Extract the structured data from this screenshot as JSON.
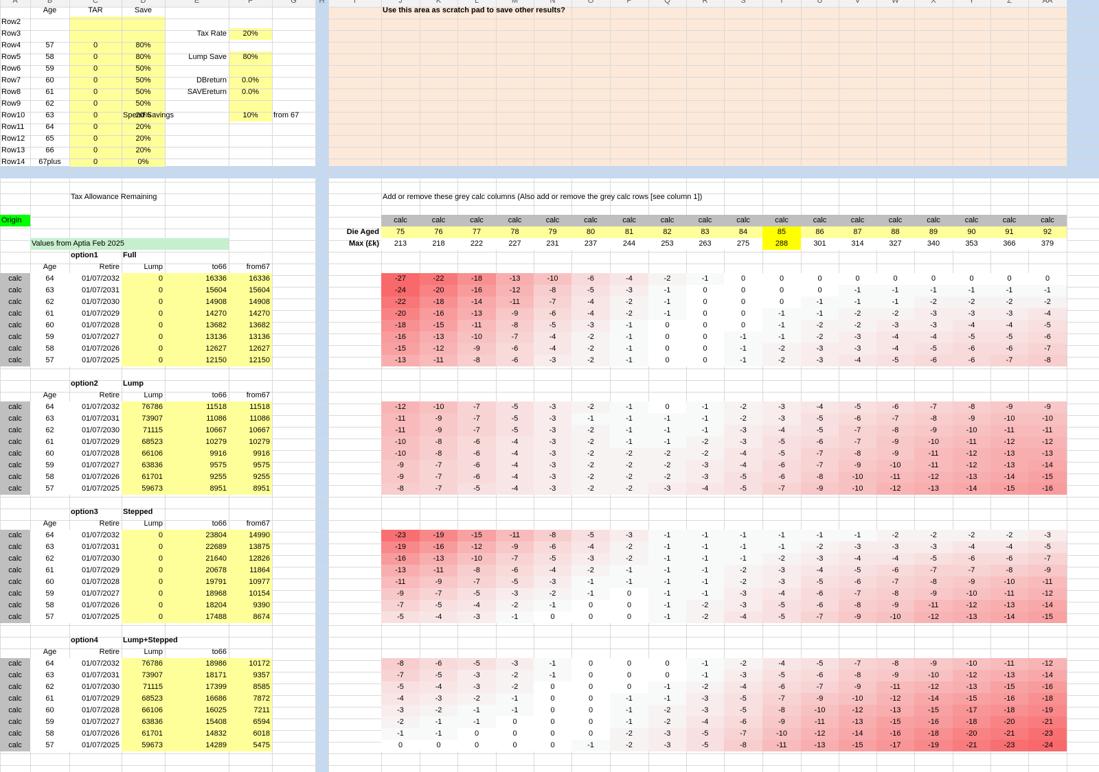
{
  "colors": {
    "yellow": "#ffff99",
    "peach": "#fde9d9",
    "blue_band": "#c5d9f1",
    "grey": "#bfbfbf",
    "green": "#00ff00",
    "light_green": "#c6efce",
    "highlight": "#ffff00",
    "cell_red": "#f8696b"
  },
  "column_letters": [
    "A",
    "B",
    "C",
    "D",
    "E",
    "F",
    "G",
    "H",
    "I",
    "J",
    "K",
    "L",
    "M",
    "N",
    "O",
    "P",
    "Q",
    "R",
    "S",
    "T",
    "U",
    "V",
    "W",
    "X",
    "Y",
    "Z",
    "AA"
  ],
  "params": {
    "headers": [
      "Age",
      "TAR",
      "Save"
    ],
    "rows": [
      {
        "label": "Row2",
        "age": "",
        "tar": "",
        "save": ""
      },
      {
        "label": "Row3",
        "age": "",
        "tar": "",
        "save": ""
      },
      {
        "label": "Row4",
        "age": "57",
        "tar": "0",
        "save": "80%"
      },
      {
        "label": "Row5",
        "age": "58",
        "tar": "0",
        "save": "80%"
      },
      {
        "label": "Row6",
        "age": "59",
        "tar": "0",
        "save": "50%"
      },
      {
        "label": "Row7",
        "age": "60",
        "tar": "0",
        "save": "50%"
      },
      {
        "label": "Row8",
        "age": "61",
        "tar": "0",
        "save": "50%"
      },
      {
        "label": "Row9",
        "age": "62",
        "tar": "0",
        "save": "50%"
      },
      {
        "label": "Row10",
        "age": "63",
        "tar": "0",
        "save": "20%"
      },
      {
        "label": "Row11",
        "age": "64",
        "tar": "0",
        "save": "20%"
      },
      {
        "label": "Row12",
        "age": "65",
        "tar": "0",
        "save": "20%"
      },
      {
        "label": "Row13",
        "age": "66",
        "tar": "0",
        "save": "20%"
      },
      {
        "label": "Row14",
        "age": "67plus",
        "tar": "0",
        "save": "0%"
      }
    ],
    "settings": [
      {
        "label": "Tax Rate",
        "value": "20%",
        "extra": ""
      },
      {
        "label": "Lump Save",
        "value": "80%",
        "extra": ""
      },
      {
        "label": "DBreturn",
        "value": "0.0%",
        "extra": ""
      },
      {
        "label": "SAVEreturn",
        "value": "0.0%",
        "extra": ""
      },
      {
        "label": "Spend Savings",
        "value": "10%",
        "extra": "from 67"
      }
    ]
  },
  "scratch_note": "Use this area as scratch pad to save other results?",
  "tar_title": "Tax Allowance Remaining",
  "calc_note": "Add or remove these grey calc columns   (Also add or remove the grey calc rows [see column 1])",
  "origin_label": "Origin",
  "values_note": "Values from Aptia Feb 2025",
  "calc_label": "calc",
  "die_aged_label": "Die Aged",
  "max_label": "Max (£k)",
  "die_ages": [
    "75",
    "76",
    "77",
    "78",
    "79",
    "80",
    "81",
    "82",
    "83",
    "84",
    "85",
    "86",
    "87",
    "88",
    "89",
    "90",
    "91",
    "92"
  ],
  "max_values": [
    "213",
    "218",
    "222",
    "227",
    "231",
    "237",
    "244",
    "253",
    "263",
    "275",
    "288",
    "301",
    "314",
    "327",
    "340",
    "353",
    "366",
    "379"
  ],
  "highlight_col": 10,
  "options": [
    {
      "name": "option1",
      "title": "Full",
      "headers": [
        "Age",
        "Retire",
        "Lump",
        "to66",
        "from67"
      ],
      "rows": [
        [
          "64",
          "01/07/2032",
          "0",
          "16336",
          "16336"
        ],
        [
          "63",
          "01/07/2031",
          "0",
          "15604",
          "15604"
        ],
        [
          "62",
          "01/07/2030",
          "0",
          "14908",
          "14908"
        ],
        [
          "61",
          "01/07/2029",
          "0",
          "14270",
          "14270"
        ],
        [
          "60",
          "01/07/2028",
          "0",
          "13682",
          "13682"
        ],
        [
          "59",
          "01/07/2027",
          "0",
          "13136",
          "13136"
        ],
        [
          "58",
          "01/07/2026",
          "0",
          "12627",
          "12627"
        ],
        [
          "57",
          "01/07/2025",
          "0",
          "12150",
          "12150"
        ]
      ],
      "grid": [
        [
          "-27",
          "-22",
          "-18",
          "-13",
          "-10",
          "-6",
          "-4",
          "-2",
          "-1",
          "0",
          "0",
          "0",
          "0",
          "0",
          "0",
          "0",
          "0",
          "0"
        ],
        [
          "-24",
          "-20",
          "-16",
          "-12",
          "-8",
          "-5",
          "-3",
          "-1",
          "0",
          "0",
          "0",
          "0",
          "-1",
          "-1",
          "-1",
          "-1",
          "-1",
          "-1"
        ],
        [
          "-22",
          "-18",
          "-14",
          "-11",
          "-7",
          "-4",
          "-2",
          "-1",
          "0",
          "0",
          "0",
          "-1",
          "-1",
          "-1",
          "-2",
          "-2",
          "-2",
          "-2"
        ],
        [
          "-20",
          "-16",
          "-13",
          "-9",
          "-6",
          "-4",
          "-2",
          "-1",
          "0",
          "0",
          "-1",
          "-1",
          "-2",
          "-2",
          "-3",
          "-3",
          "-3",
          "-4"
        ],
        [
          "-18",
          "-15",
          "-11",
          "-8",
          "-5",
          "-3",
          "-1",
          "0",
          "0",
          "0",
          "-1",
          "-2",
          "-2",
          "-3",
          "-3",
          "-4",
          "-4",
          "-5"
        ],
        [
          "-16",
          "-13",
          "-10",
          "-7",
          "-4",
          "-2",
          "-1",
          "0",
          "0",
          "-1",
          "-1",
          "-2",
          "-3",
          "-4",
          "-4",
          "-5",
          "-5",
          "-6"
        ],
        [
          "-15",
          "-12",
          "-9",
          "-6",
          "-4",
          "-2",
          "-1",
          "0",
          "0",
          "-1",
          "-2",
          "-3",
          "-3",
          "-4",
          "-5",
          "-6",
          "-6",
          "-7"
        ],
        [
          "-13",
          "-11",
          "-8",
          "-6",
          "-3",
          "-2",
          "-1",
          "0",
          "0",
          "-1",
          "-2",
          "-3",
          "-4",
          "-5",
          "-6",
          "-6",
          "-7",
          "-8"
        ]
      ]
    },
    {
      "name": "option2",
      "title": "Lump",
      "headers": [
        "Age",
        "Retire",
        "Lump",
        "to66",
        "from67"
      ],
      "rows": [
        [
          "64",
          "01/07/2032",
          "76786",
          "11518",
          "11518"
        ],
        [
          "63",
          "01/07/2031",
          "73907",
          "11086",
          "11086"
        ],
        [
          "62",
          "01/07/2030",
          "71115",
          "10667",
          "10667"
        ],
        [
          "61",
          "01/07/2029",
          "68523",
          "10279",
          "10279"
        ],
        [
          "60",
          "01/07/2028",
          "66106",
          "9916",
          "9916"
        ],
        [
          "59",
          "01/07/2027",
          "63836",
          "9575",
          "9575"
        ],
        [
          "58",
          "01/07/2026",
          "61701",
          "9255",
          "9255"
        ],
        [
          "57",
          "01/07/2025",
          "59673",
          "8951",
          "8951"
        ]
      ],
      "grid": [
        [
          "-12",
          "-10",
          "-7",
          "-5",
          "-3",
          "-2",
          "-1",
          "0",
          "-1",
          "-2",
          "-3",
          "-4",
          "-5",
          "-6",
          "-7",
          "-8",
          "-9",
          "-9"
        ],
        [
          "-11",
          "-9",
          "-7",
          "-5",
          "-3",
          "-1",
          "-1",
          "-1",
          "-1",
          "-2",
          "-3",
          "-5",
          "-6",
          "-7",
          "-8",
          "-9",
          "-10",
          "-10"
        ],
        [
          "-11",
          "-9",
          "-7",
          "-5",
          "-3",
          "-2",
          "-1",
          "-1",
          "-1",
          "-3",
          "-4",
          "-5",
          "-7",
          "-8",
          "-9",
          "-10",
          "-11",
          "-11"
        ],
        [
          "-10",
          "-8",
          "-6",
          "-4",
          "-3",
          "-2",
          "-1",
          "-1",
          "-2",
          "-3",
          "-5",
          "-6",
          "-7",
          "-9",
          "-10",
          "-11",
          "-12",
          "-12"
        ],
        [
          "-10",
          "-8",
          "-6",
          "-4",
          "-3",
          "-2",
          "-2",
          "-2",
          "-2",
          "-4",
          "-5",
          "-7",
          "-8",
          "-9",
          "-11",
          "-12",
          "-13",
          "-13"
        ],
        [
          "-9",
          "-7",
          "-6",
          "-4",
          "-3",
          "-2",
          "-2",
          "-2",
          "-3",
          "-4",
          "-6",
          "-7",
          "-9",
          "-10",
          "-11",
          "-12",
          "-13",
          "-14"
        ],
        [
          "-9",
          "-7",
          "-6",
          "-4",
          "-3",
          "-2",
          "-2",
          "-2",
          "-3",
          "-5",
          "-6",
          "-8",
          "-10",
          "-11",
          "-12",
          "-13",
          "-14",
          "-15"
        ],
        [
          "-8",
          "-7",
          "-5",
          "-4",
          "-3",
          "-2",
          "-2",
          "-3",
          "-4",
          "-5",
          "-7",
          "-9",
          "-10",
          "-12",
          "-13",
          "-14",
          "-15",
          "-16"
        ]
      ]
    },
    {
      "name": "option3",
      "title": "Stepped",
      "headers": [
        "Age",
        "Retire",
        "Lump",
        "to66",
        "from67"
      ],
      "rows": [
        [
          "64",
          "01/07/2032",
          "0",
          "23804",
          "14990"
        ],
        [
          "63",
          "01/07/2031",
          "0",
          "22689",
          "13875"
        ],
        [
          "62",
          "01/07/2030",
          "0",
          "21640",
          "12826"
        ],
        [
          "61",
          "01/07/2029",
          "0",
          "20678",
          "11864"
        ],
        [
          "60",
          "01/07/2028",
          "0",
          "19791",
          "10977"
        ],
        [
          "59",
          "01/07/2027",
          "0",
          "18968",
          "10154"
        ],
        [
          "58",
          "01/07/2026",
          "0",
          "18204",
          "9390"
        ],
        [
          "57",
          "01/07/2025",
          "0",
          "17488",
          "8674"
        ]
      ],
      "grid": [
        [
          "-23",
          "-19",
          "-15",
          "-11",
          "-8",
          "-5",
          "-3",
          "-1",
          "-1",
          "-1",
          "-1",
          "-1",
          "-1",
          "-2",
          "-2",
          "-2",
          "-2",
          "-3"
        ],
        [
          "-19",
          "-16",
          "-12",
          "-9",
          "-6",
          "-4",
          "-2",
          "-1",
          "-1",
          "-1",
          "-1",
          "-2",
          "-3",
          "-3",
          "-3",
          "-4",
          "-4",
          "-5"
        ],
        [
          "-16",
          "-13",
          "-10",
          "-7",
          "-5",
          "-3",
          "-2",
          "-1",
          "-1",
          "-1",
          "-2",
          "-3",
          "-4",
          "-4",
          "-5",
          "-6",
          "-6",
          "-7"
        ],
        [
          "-13",
          "-11",
          "-8",
          "-6",
          "-4",
          "-2",
          "-1",
          "-1",
          "-1",
          "-2",
          "-3",
          "-4",
          "-5",
          "-6",
          "-7",
          "-7",
          "-8",
          "-9"
        ],
        [
          "-11",
          "-9",
          "-7",
          "-5",
          "-3",
          "-1",
          "-1",
          "-1",
          "-1",
          "-2",
          "-3",
          "-5",
          "-6",
          "-7",
          "-8",
          "-9",
          "-10",
          "-11"
        ],
        [
          "-9",
          "-7",
          "-5",
          "-3",
          "-2",
          "-1",
          "0",
          "-1",
          "-1",
          "-3",
          "-4",
          "-6",
          "-7",
          "-8",
          "-9",
          "-10",
          "-11",
          "-12"
        ],
        [
          "-7",
          "-5",
          "-4",
          "-2",
          "-1",
          "0",
          "0",
          "-1",
          "-2",
          "-3",
          "-5",
          "-6",
          "-8",
          "-9",
          "-11",
          "-12",
          "-13",
          "-14"
        ],
        [
          "-5",
          "-4",
          "-3",
          "-1",
          "0",
          "0",
          "0",
          "-1",
          "-2",
          "-4",
          "-5",
          "-7",
          "-9",
          "-10",
          "-12",
          "-13",
          "-14",
          "-15"
        ]
      ]
    },
    {
      "name": "option4",
      "title": "Lump+Stepped",
      "headers": [
        "Age",
        "Retire",
        "Lump",
        "to66",
        ""
      ],
      "rows": [
        [
          "64",
          "01/07/2032",
          "76786",
          "18986",
          "10172"
        ],
        [
          "63",
          "01/07/2031",
          "73907",
          "18171",
          "9357"
        ],
        [
          "62",
          "01/07/2030",
          "71115",
          "17399",
          "8585"
        ],
        [
          "61",
          "01/07/2029",
          "68523",
          "16686",
          "7872"
        ],
        [
          "60",
          "01/07/2028",
          "66106",
          "16025",
          "7211"
        ],
        [
          "59",
          "01/07/2027",
          "63836",
          "15408",
          "6594"
        ],
        [
          "58",
          "01/07/2026",
          "61701",
          "14832",
          "6018"
        ],
        [
          "57",
          "01/07/2025",
          "59673",
          "14289",
          "5475"
        ]
      ],
      "grid": [
        [
          "-8",
          "-6",
          "-5",
          "-3",
          "-1",
          "0",
          "0",
          "0",
          "-1",
          "-2",
          "-4",
          "-5",
          "-7",
          "-8",
          "-9",
          "-10",
          "-11",
          "-12"
        ],
        [
          "-7",
          "-5",
          "-3",
          "-2",
          "-1",
          "0",
          "0",
          "0",
          "-1",
          "-3",
          "-5",
          "-6",
          "-8",
          "-9",
          "-10",
          "-12",
          "-13",
          "-14"
        ],
        [
          "-5",
          "-4",
          "-3",
          "-2",
          "0",
          "0",
          "0",
          "-1",
          "-2",
          "-4",
          "-6",
          "-7",
          "-9",
          "-11",
          "-12",
          "-13",
          "-15",
          "-16"
        ],
        [
          "-4",
          "-3",
          "-2",
          "-1",
          "0",
          "0",
          "-1",
          "-1",
          "-3",
          "-5",
          "-7",
          "-9",
          "-10",
          "-12",
          "-14",
          "-15",
          "-16",
          "-18"
        ],
        [
          "-3",
          "-2",
          "-1",
          "-1",
          "0",
          "0",
          "-1",
          "-2",
          "-3",
          "-5",
          "-8",
          "-10",
          "-12",
          "-13",
          "-15",
          "-17",
          "-18",
          "-19"
        ],
        [
          "-2",
          "-1",
          "-1",
          "0",
          "0",
          "0",
          "-1",
          "-2",
          "-4",
          "-6",
          "-9",
          "-11",
          "-13",
          "-15",
          "-16",
          "-18",
          "-20",
          "-21"
        ],
        [
          "-1",
          "-1",
          "0",
          "0",
          "0",
          "0",
          "-2",
          "-3",
          "-5",
          "-7",
          "-10",
          "-12",
          "-14",
          "-16",
          "-18",
          "-20",
          "-21",
          "-23"
        ],
        [
          "0",
          "0",
          "0",
          "0",
          "0",
          "-1",
          "-2",
          "-3",
          "-5",
          "-8",
          "-11",
          "-13",
          "-15",
          "-17",
          "-19",
          "-21",
          "-23",
          "-24"
        ]
      ]
    }
  ]
}
